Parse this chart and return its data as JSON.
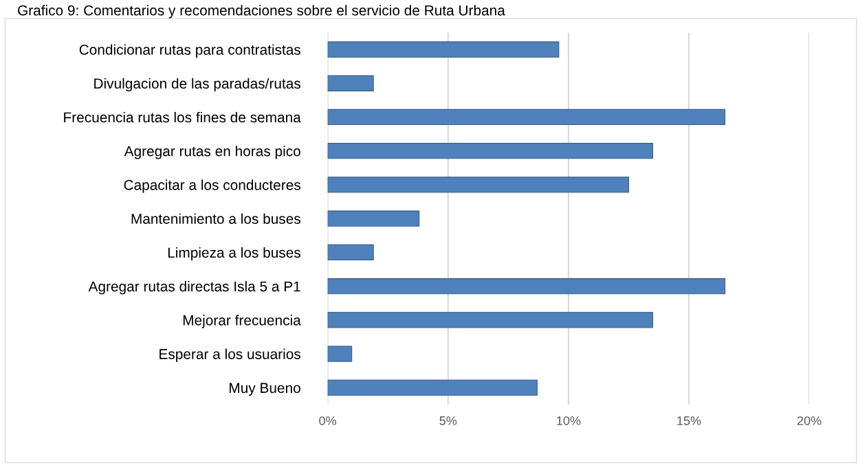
{
  "chart_data": {
    "type": "bar",
    "orientation": "horizontal",
    "title": "Grafico 9: Comentarios y recomendaciones sobre el servicio de Ruta Urbana",
    "categories": [
      "Condicionar rutas para contratistas",
      "Divulgacion de las paradas/rutas",
      "Frecuencia rutas los fines de semana",
      "Agregar rutas en horas pico",
      "Capacitar a los conducteres",
      "Mantenimiento a los buses",
      "Limpieza a los buses",
      "Agregar rutas directas Isla 5 a P1",
      "Mejorar frecuencia",
      "Esperar a los usuarios",
      "Muy Bueno"
    ],
    "values": [
      9.6,
      1.9,
      16.5,
      13.5,
      12.5,
      3.8,
      1.9,
      16.5,
      13.5,
      1.0,
      8.7
    ],
    "color": "#4f81bd",
    "xlim": [
      0,
      20
    ],
    "xticks": [
      {
        "value": 0,
        "label": "0%"
      },
      {
        "value": 5,
        "label": "5%"
      },
      {
        "value": 10,
        "label": "10%"
      },
      {
        "value": 15,
        "label": "15%"
      },
      {
        "value": 20,
        "label": "20%"
      }
    ],
    "grid": "x"
  }
}
